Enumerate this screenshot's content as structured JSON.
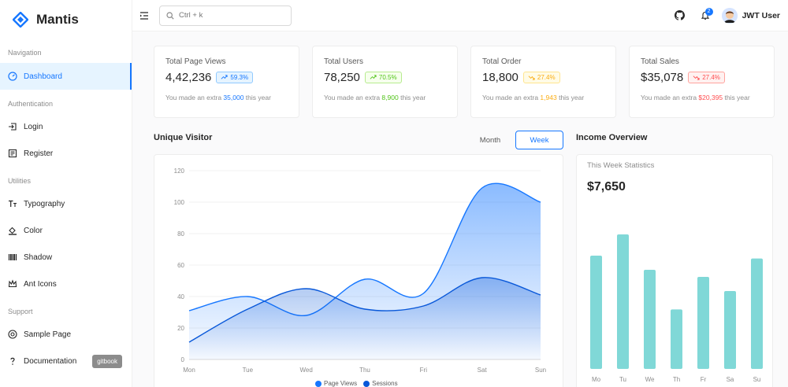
{
  "brand": {
    "name": "Mantis"
  },
  "sidebar": {
    "groups": [
      {
        "label": "Navigation",
        "items": [
          {
            "label": "Dashboard",
            "icon": "dashboard-icon",
            "active": true
          }
        ]
      },
      {
        "label": "Authentication",
        "items": [
          {
            "label": "Login",
            "icon": "login-icon"
          },
          {
            "label": "Register",
            "icon": "register-icon"
          }
        ]
      },
      {
        "label": "Utilities",
        "items": [
          {
            "label": "Typography",
            "icon": "typography-icon"
          },
          {
            "label": "Color",
            "icon": "bg-colors-icon"
          },
          {
            "label": "Shadow",
            "icon": "barcode-icon"
          },
          {
            "label": "Ant Icons",
            "icon": "crown-icon"
          }
        ]
      },
      {
        "label": "Support",
        "items": [
          {
            "label": "Sample Page",
            "icon": "chrome-icon"
          },
          {
            "label": "Documentation",
            "icon": "question-icon",
            "badge": "gitbook"
          }
        ]
      }
    ]
  },
  "header": {
    "search_placeholder": "Ctrl + k",
    "notifications_count": "2",
    "user_name": "JWT User"
  },
  "stats": [
    {
      "title": "Total Page Views",
      "value": "4,42,236",
      "change": "59.3%",
      "trend": "up",
      "color": "#1677ff",
      "bg": "#e6f4ff",
      "border": "#91caff",
      "foot_prefix": "You made an extra",
      "foot_value": "35,000",
      "foot_suffix": "this year"
    },
    {
      "title": "Total Users",
      "value": "78,250",
      "change": "70.5%",
      "trend": "up",
      "color": "#52c41a",
      "bg": "#f6ffed",
      "border": "#b7eb8f",
      "foot_prefix": "You made an extra",
      "foot_value": "8,900",
      "foot_suffix": "this year"
    },
    {
      "title": "Total Order",
      "value": "18,800",
      "change": "27.4%",
      "trend": "down",
      "color": "#faad14",
      "bg": "#fffbe6",
      "border": "#ffe58f",
      "foot_prefix": "You made an extra",
      "foot_value": "1,943",
      "foot_suffix": "this year"
    },
    {
      "title": "Total Sales",
      "value": "$35,078",
      "change": "27.4%",
      "trend": "down",
      "color": "#ff4d4f",
      "bg": "#fff1f0",
      "border": "#ffa39e",
      "foot_prefix": "You made an extra",
      "foot_value": "$20,395",
      "foot_suffix": "this year"
    }
  ],
  "unique_visitor": {
    "title": "Unique Visitor",
    "toggle": {
      "month": "Month",
      "week": "Week",
      "selected": "week"
    }
  },
  "income": {
    "title": "Income Overview",
    "subtitle": "This Week Statistics",
    "value": "$7,650"
  },
  "chart_data": [
    {
      "type": "area",
      "categories": [
        "Mon",
        "Tue",
        "Wed",
        "Thu",
        "Fri",
        "Sat",
        "Sun"
      ],
      "ylim": [
        0,
        120
      ],
      "yticks": [
        0,
        20,
        40,
        60,
        80,
        100,
        120
      ],
      "grid": true,
      "legend_position": "bottom",
      "series": [
        {
          "name": "Page Views",
          "values": [
            31,
            40,
            28,
            51,
            42,
            109,
            100
          ],
          "color": "#1677ff"
        },
        {
          "name": "Sessions",
          "values": [
            11,
            32,
            45,
            32,
            34,
            52,
            41
          ],
          "color": "#0958d9"
        }
      ]
    },
    {
      "type": "bar",
      "categories": [
        "Mo",
        "Tu",
        "We",
        "Th",
        "Fr",
        "Sa",
        "Su"
      ],
      "values": [
        80,
        95,
        70,
        42,
        65,
        55,
        78
      ],
      "ylim": [
        0,
        100
      ],
      "color": "#80d8d7"
    }
  ]
}
